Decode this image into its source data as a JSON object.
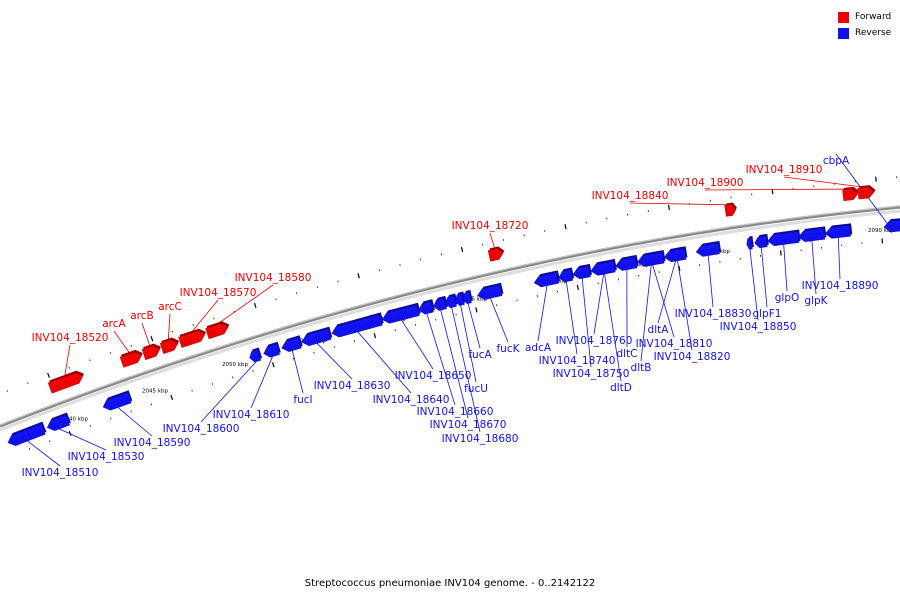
{
  "caption": "Streptococcus pneumoniae INV104 genome. - 0..2142122",
  "colors": {
    "forward": "#ee0000",
    "reverse": "#1111ee",
    "axis": "#888888"
  },
  "legend": [
    {
      "label": "Forward",
      "color": "#ee0000"
    },
    {
      "label": "Reverse",
      "color": "#1111ee"
    }
  ],
  "axis_ticks": [
    "2040 kbp",
    "2045 kbp",
    "2050 kbp",
    "2055 kbp",
    "2060 kbp",
    "2065 kbp",
    "2070 kbp",
    "2075 kbp",
    "2080 kbp",
    "2085 kbp",
    "2090 kbp"
  ],
  "genes": [
    {
      "name": "INV104_18510",
      "strand": "reverse"
    },
    {
      "name": "INV104_18520",
      "strand": "forward"
    },
    {
      "name": "INV104_18530",
      "strand": "reverse"
    },
    {
      "name": "arcA",
      "strand": "forward"
    },
    {
      "name": "arcB",
      "strand": "forward"
    },
    {
      "name": "arcC",
      "strand": "forward"
    },
    {
      "name": "INV104_18570",
      "strand": "forward"
    },
    {
      "name": "INV104_18580",
      "strand": "forward"
    },
    {
      "name": "INV104_18590",
      "strand": "reverse"
    },
    {
      "name": "INV104_18600",
      "strand": "reverse"
    },
    {
      "name": "INV104_18610",
      "strand": "reverse"
    },
    {
      "name": "fucI",
      "strand": "reverse"
    },
    {
      "name": "INV104_18630",
      "strand": "reverse"
    },
    {
      "name": "INV104_18640",
      "strand": "reverse"
    },
    {
      "name": "INV104_18650",
      "strand": "reverse"
    },
    {
      "name": "INV104_18660",
      "strand": "reverse"
    },
    {
      "name": "INV104_18670",
      "strand": "reverse"
    },
    {
      "name": "INV104_18680",
      "strand": "reverse"
    },
    {
      "name": "fucU",
      "strand": "reverse"
    },
    {
      "name": "fucA",
      "strand": "reverse"
    },
    {
      "name": "fucK",
      "strand": "reverse"
    },
    {
      "name": "INV104_18720",
      "strand": "forward"
    },
    {
      "name": "adcA",
      "strand": "reverse"
    },
    {
      "name": "INV104_18740",
      "strand": "reverse"
    },
    {
      "name": "INV104_18750",
      "strand": "reverse"
    },
    {
      "name": "INV104_18760",
      "strand": "reverse"
    },
    {
      "name": "dltD",
      "strand": "reverse"
    },
    {
      "name": "dltC",
      "strand": "reverse"
    },
    {
      "name": "dltB",
      "strand": "reverse"
    },
    {
      "name": "dltA",
      "strand": "reverse"
    },
    {
      "name": "INV104_18810",
      "strand": "reverse"
    },
    {
      "name": "INV104_18820",
      "strand": "reverse"
    },
    {
      "name": "INV104_18830",
      "strand": "reverse"
    },
    {
      "name": "INV104_18840",
      "strand": "forward"
    },
    {
      "name": "INV104_18850",
      "strand": "reverse"
    },
    {
      "name": "glpF1",
      "strand": "reverse"
    },
    {
      "name": "glpO",
      "strand": "reverse"
    },
    {
      "name": "glpK",
      "strand": "reverse"
    },
    {
      "name": "INV104_18890",
      "strand": "reverse"
    },
    {
      "name": "INV104_18900",
      "strand": "forward"
    },
    {
      "name": "INV104_18910",
      "strand": "forward"
    },
    {
      "name": "cbpA",
      "strand": "reverse"
    }
  ]
}
